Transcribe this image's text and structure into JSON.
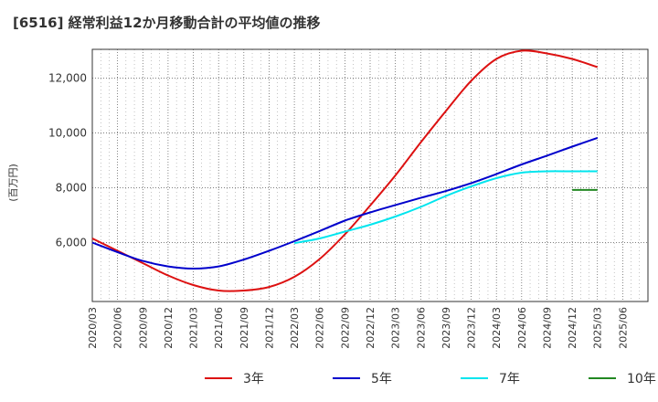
{
  "title": "[6516]  経常利益12か月移動合計の平均値の推移",
  "chart_data": {
    "type": "line",
    "ylabel": "(百万円)",
    "ylim": [
      3850,
      13050
    ],
    "y_ticks": [
      6000,
      8000,
      10000,
      12000
    ],
    "y_tick_labels": [
      "6,000",
      "8,000",
      "10,000",
      "12,000"
    ],
    "x_ticks": [
      "2020/03",
      "2020/06",
      "2020/09",
      "2020/12",
      "2021/03",
      "2021/06",
      "2021/09",
      "2021/12",
      "2022/03",
      "2022/06",
      "2022/09",
      "2022/12",
      "2023/03",
      "2023/06",
      "2023/09",
      "2023/12",
      "2024/03",
      "2024/06",
      "2024/09",
      "2024/12",
      "2025/03",
      "2025/06"
    ],
    "grid": true,
    "legend_position": "bottom",
    "series": [
      {
        "name": "3年",
        "color": "#dd1111",
        "x": [
          "2020/03",
          "2020/06",
          "2020/09",
          "2020/12",
          "2021/03",
          "2021/06",
          "2021/09",
          "2021/12",
          "2022/03",
          "2022/06",
          "2022/09",
          "2022/12",
          "2023/03",
          "2023/06",
          "2023/09",
          "2023/12",
          "2024/03",
          "2024/06",
          "2024/09",
          "2024/12",
          "2025/03"
        ],
        "values": [
          6150,
          5700,
          5250,
          4800,
          4450,
          4250,
          4250,
          4380,
          4750,
          5400,
          6300,
          7350,
          8450,
          9650,
          10800,
          11900,
          12700,
          13000,
          12900,
          12700,
          12400
        ]
      },
      {
        "name": "5年",
        "color": "#0000cc",
        "x": [
          "2020/03",
          "2020/06",
          "2020/09",
          "2020/12",
          "2021/03",
          "2021/06",
          "2021/09",
          "2021/12",
          "2022/03",
          "2022/06",
          "2022/09",
          "2022/12",
          "2023/03",
          "2023/06",
          "2023/09",
          "2023/12",
          "2024/03",
          "2024/06",
          "2024/09",
          "2024/12",
          "2025/03"
        ],
        "values": [
          6000,
          5650,
          5330,
          5130,
          5050,
          5130,
          5380,
          5700,
          6050,
          6420,
          6800,
          7100,
          7370,
          7630,
          7880,
          8170,
          8500,
          8850,
          9170,
          9500,
          9820
        ]
      },
      {
        "name": "7年",
        "color": "#00e5ee",
        "x": [
          "2022/03",
          "2022/06",
          "2022/09",
          "2022/12",
          "2023/03",
          "2023/06",
          "2023/09",
          "2023/12",
          "2024/03",
          "2024/06",
          "2024/09",
          "2024/12",
          "2025/03"
        ],
        "values": [
          5980,
          6150,
          6400,
          6650,
          6950,
          7300,
          7700,
          8050,
          8350,
          8550,
          8600,
          8600,
          8600
        ]
      },
      {
        "name": "10年",
        "color": "#228822",
        "x": [
          "2024/12",
          "2025/03"
        ],
        "values": [
          7920,
          7920
        ]
      }
    ]
  }
}
